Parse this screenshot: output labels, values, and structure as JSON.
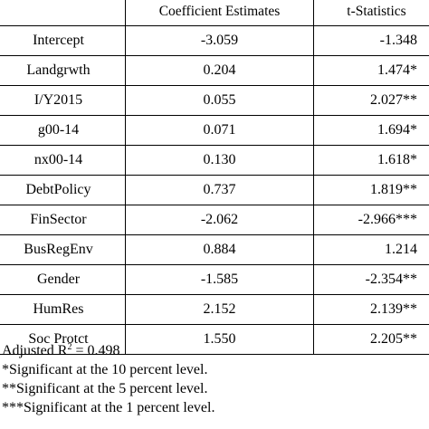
{
  "table": {
    "headers": [
      "",
      "Coefficient Estimates",
      "t-Statistics"
    ],
    "rows": [
      {
        "variable": "Intercept",
        "coefficient": "-3.059",
        "t_stat": "-1.348"
      },
      {
        "variable": "Landgrwth",
        "coefficient": "0.204",
        "t_stat": "1.474*"
      },
      {
        "variable": "I/Y2015",
        "coefficient": "0.055",
        "t_stat": "2.027**"
      },
      {
        "variable": "g00-14",
        "coefficient": "0.071",
        "t_stat": "1.694*"
      },
      {
        "variable": "nx00-14",
        "coefficient": "0.130",
        "t_stat": "1.618*"
      },
      {
        "variable": "DebtPolicy",
        "coefficient": "0.737",
        "t_stat": "1.819**"
      },
      {
        "variable": "FinSector",
        "coefficient": "-2.062",
        "t_stat": "-2.966***"
      },
      {
        "variable": "BusRegEnv",
        "coefficient": "0.884",
        "t_stat": "1.214"
      },
      {
        "variable": "Gender",
        "coefficient": "-1.585",
        "t_stat": "-2.354**"
      },
      {
        "variable": "HumRes",
        "coefficient": "2.152",
        "t_stat": "2.139**"
      },
      {
        "variable": "Soc Protct",
        "coefficient": "1.550",
        "t_stat": "2.205**"
      }
    ]
  },
  "notes": {
    "adjusted_r2_prefix": "Adjusted R",
    "adjusted_r2_sup": "2",
    "adjusted_r2_suffix": " = 0.498",
    "sig_10": "*Significant at the 10 percent level.",
    "sig_5": "**Significant at the 5 percent level.",
    "sig_1": "***Significant at the 1 percent level."
  }
}
